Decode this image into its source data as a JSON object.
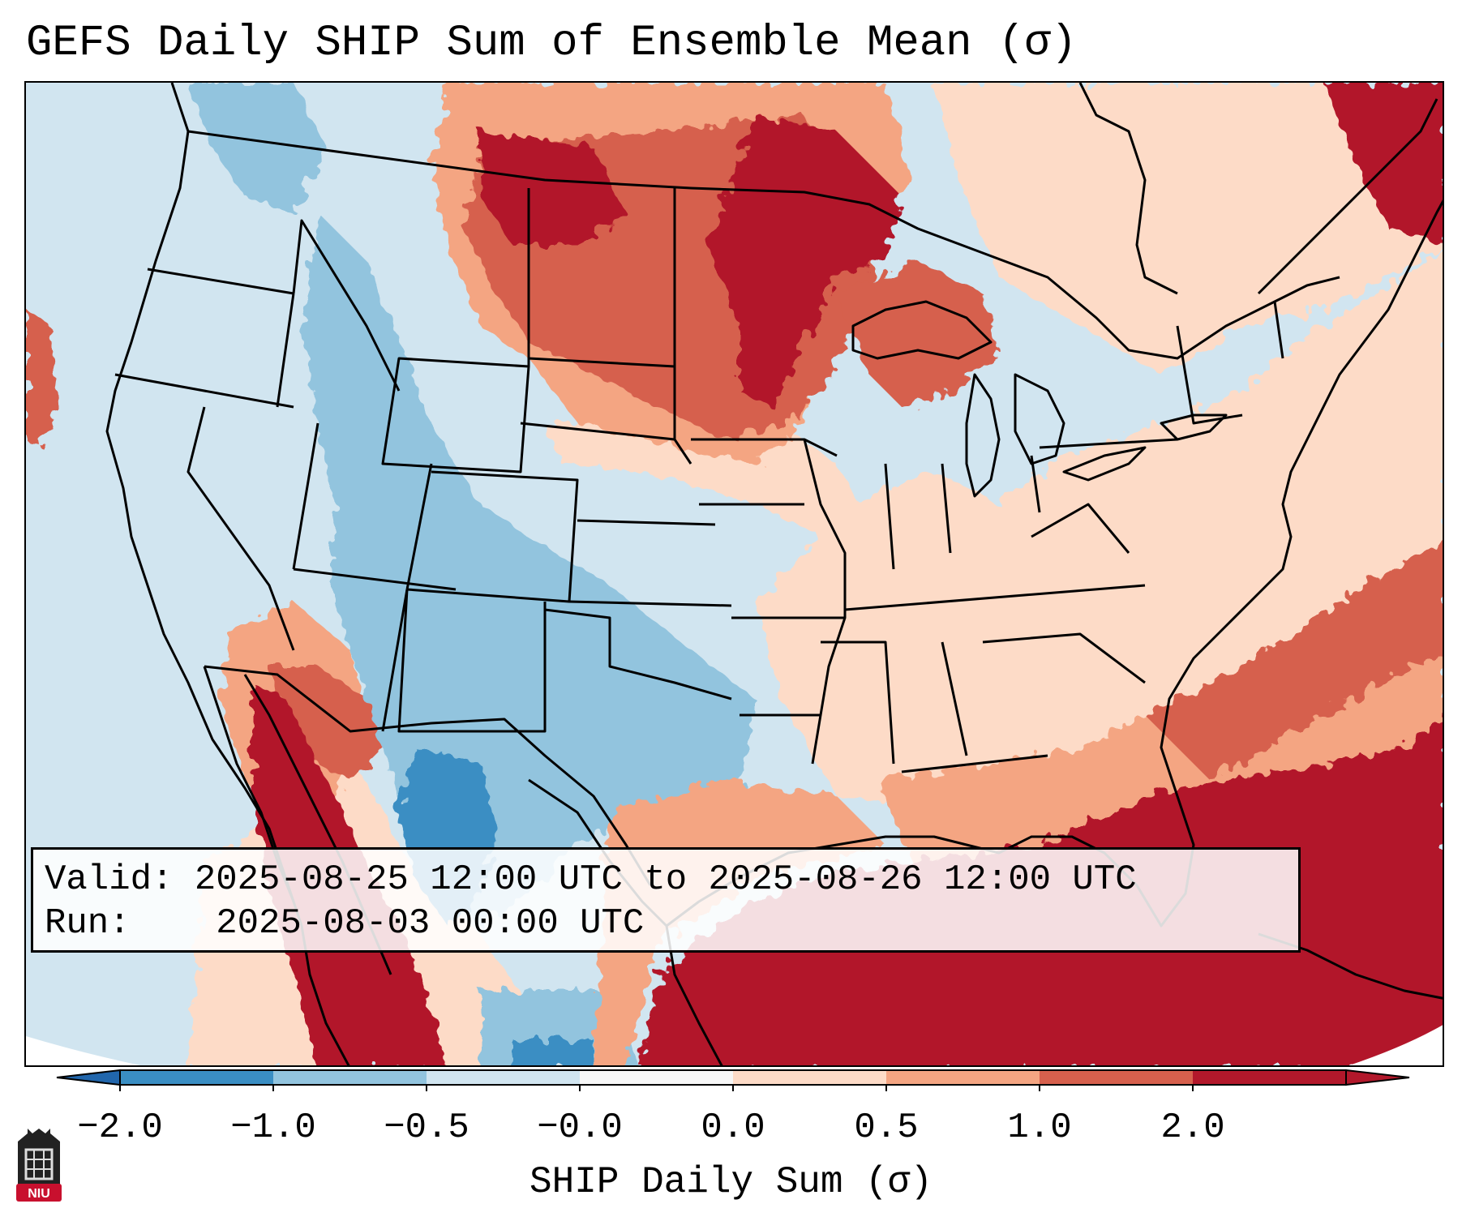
{
  "title": "GEFS Daily SHIP Sum of Ensemble Mean (σ)",
  "info": {
    "valid_label": "Valid:",
    "valid_value": "2025-08-25 12:00 UTC to 2025-08-26 12:00 UTC",
    "run_label": "Run:",
    "run_value": "2025-08-03 00:00 UTC"
  },
  "colorbar": {
    "label": "SHIP Daily Sum (σ)",
    "ticks": [
      "−2.0",
      "−1.0",
      "−0.5",
      "−0.0",
      "0.0",
      "0.5",
      "1.0",
      "2.0"
    ],
    "colors": [
      "#3a8ec3",
      "#92c4de",
      "#d1e5f0",
      "#f7f7f7",
      "#fddbc7",
      "#f4a582",
      "#d6604d",
      "#b2182b"
    ],
    "extend_low_color": "#2166ac",
    "extend_high_color": "#b2182b"
  },
  "logo": {
    "text": "NIU",
    "color": "#c8102e"
  }
}
